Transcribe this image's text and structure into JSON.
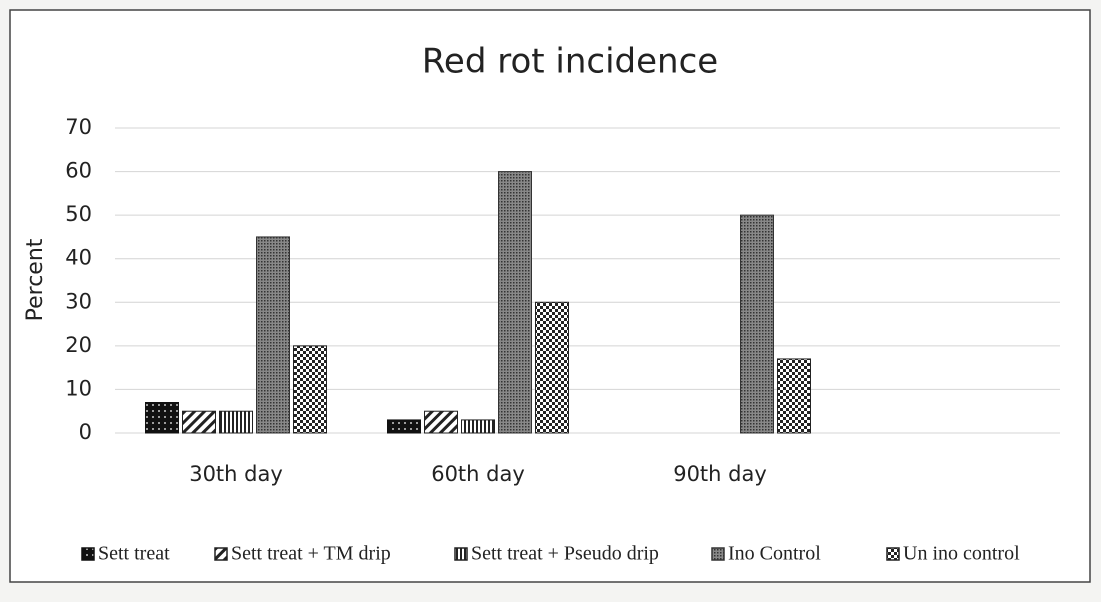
{
  "chart_data": {
    "type": "bar",
    "title": "Red rot incidence",
    "ylabel": "Percent",
    "categories": [
      "30th day",
      "60th day",
      "90th day"
    ],
    "series": [
      {
        "name": "Sett treat",
        "color": "#111111",
        "values": [
          7,
          3,
          0
        ]
      },
      {
        "name": "Sett treat + TM drip",
        "color": "#222222",
        "values": [
          5,
          5,
          0
        ]
      },
      {
        "name": "Sett treat + Pseudo drip",
        "color": "#222222",
        "values": [
          5,
          3,
          0
        ]
      },
      {
        "name": "Ino Control",
        "color": "#333333",
        "values": [
          45,
          60,
          50
        ]
      },
      {
        "name": "Un ino control",
        "color": "#222222",
        "values": [
          20,
          30,
          17
        ]
      }
    ],
    "ylim": [
      0,
      70
    ],
    "yticks": [
      0,
      10,
      20,
      30,
      40,
      50,
      60,
      70
    ],
    "grid": true,
    "legend": "bottom"
  }
}
